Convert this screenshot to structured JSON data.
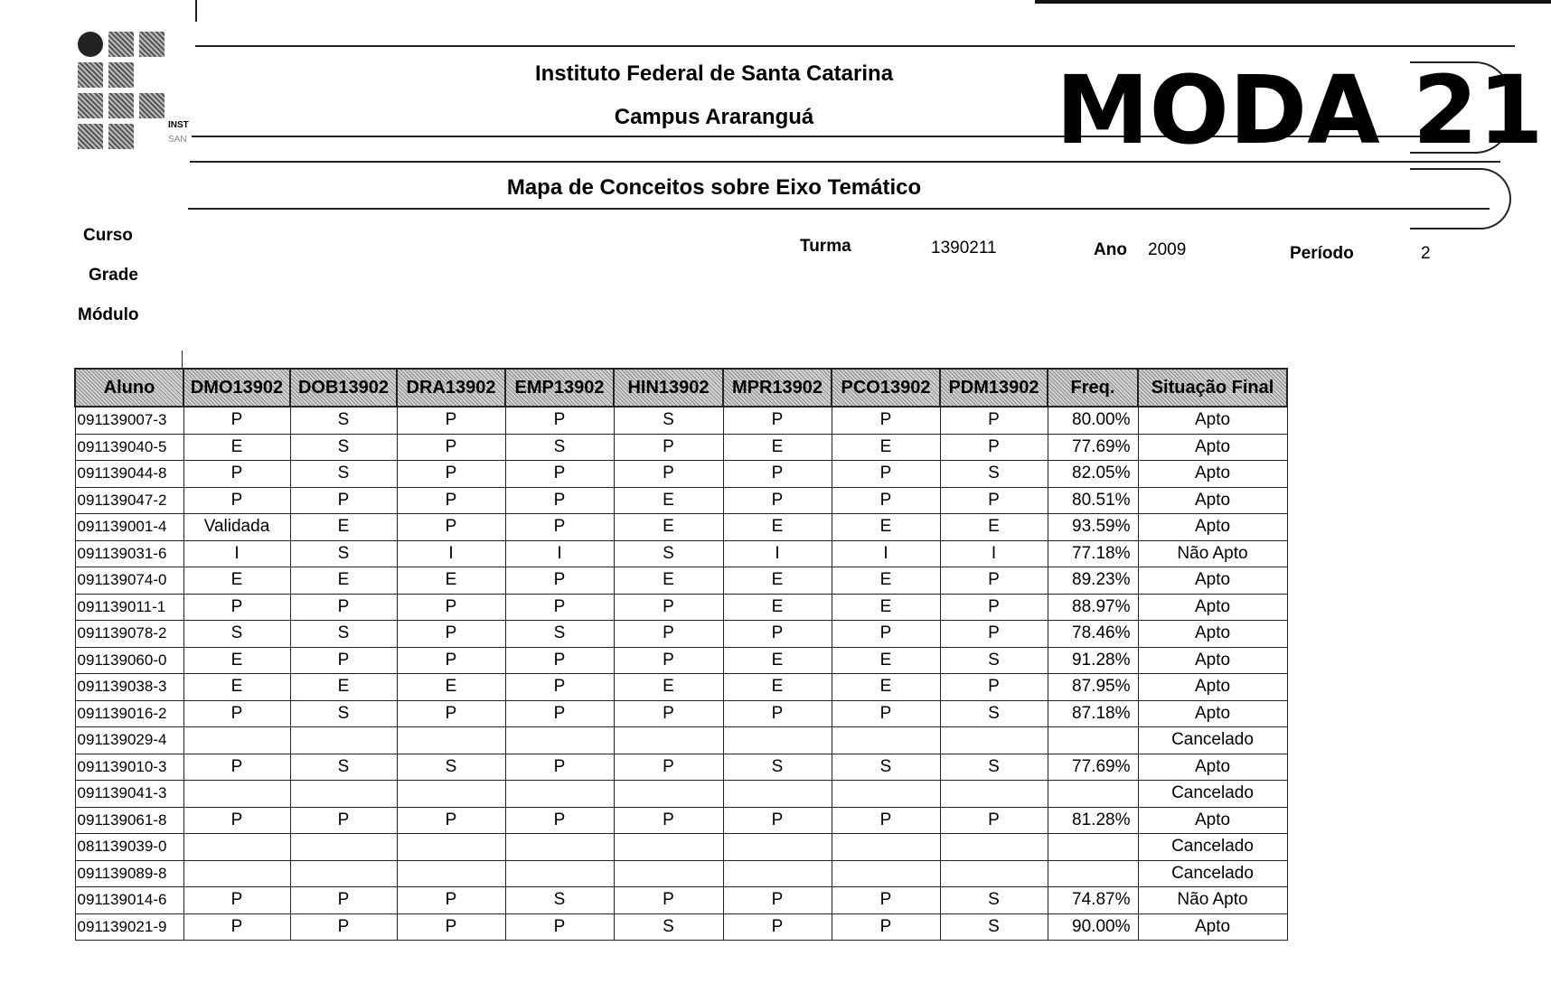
{
  "header": {
    "institution": "Instituto Federal de Santa Catarina",
    "campus": "Campus Araranguá",
    "report_title": "Mapa de Conceitos sobre Eixo Temático",
    "handwritten_note": "MODA 21",
    "logo_text": [
      "INST",
      "SAN"
    ]
  },
  "fields": {
    "curso_label": "Curso",
    "grade_label": "Grade",
    "modulo_label": "Módulo",
    "turma_label": "Turma",
    "turma_value": "1390211",
    "ano_label": "Ano",
    "ano_value": "2009",
    "periodo_label": "Período",
    "periodo_value": "2"
  },
  "table": {
    "columns": [
      "Aluno",
      "DMO13902",
      "DOB13902",
      "DRA13902",
      "EMP13902",
      "HIN13902",
      "MPR13902",
      "PCO13902",
      "PDM13902",
      "Freq.",
      "Situação Final"
    ],
    "rows": [
      [
        "091139007-3",
        "P",
        "S",
        "P",
        "P",
        "S",
        "P",
        "P",
        "P",
        "80.00%",
        "Apto"
      ],
      [
        "091139040-5",
        "E",
        "S",
        "P",
        "S",
        "P",
        "E",
        "E",
        "P",
        "77.69%",
        "Apto"
      ],
      [
        "091139044-8",
        "P",
        "S",
        "P",
        "P",
        "P",
        "P",
        "P",
        "S",
        "82.05%",
        "Apto"
      ],
      [
        "091139047-2",
        "P",
        "P",
        "P",
        "P",
        "E",
        "P",
        "P",
        "P",
        "80.51%",
        "Apto"
      ],
      [
        "091139001-4",
        "Validada",
        "E",
        "P",
        "P",
        "E",
        "E",
        "E",
        "E",
        "93.59%",
        "Apto"
      ],
      [
        "091139031-6",
        "I",
        "S",
        "I",
        "I",
        "S",
        "I",
        "I",
        "I",
        "77.18%",
        "Não Apto"
      ],
      [
        "091139074-0",
        "E",
        "E",
        "E",
        "P",
        "E",
        "E",
        "E",
        "P",
        "89.23%",
        "Apto"
      ],
      [
        "091139011-1",
        "P",
        "P",
        "P",
        "P",
        "P",
        "E",
        "E",
        "P",
        "88.97%",
        "Apto"
      ],
      [
        "091139078-2",
        "S",
        "S",
        "P",
        "S",
        "P",
        "P",
        "P",
        "P",
        "78.46%",
        "Apto"
      ],
      [
        "091139060-0",
        "E",
        "P",
        "P",
        "P",
        "P",
        "E",
        "E",
        "S",
        "91.28%",
        "Apto"
      ],
      [
        "091139038-3",
        "E",
        "E",
        "E",
        "P",
        "E",
        "E",
        "E",
        "P",
        "87.95%",
        "Apto"
      ],
      [
        "091139016-2",
        "P",
        "S",
        "P",
        "P",
        "P",
        "P",
        "P",
        "S",
        "87.18%",
        "Apto"
      ],
      [
        "091139029-4",
        "",
        "",
        "",
        "",
        "",
        "",
        "",
        "",
        "",
        "Cancelado"
      ],
      [
        "091139010-3",
        "P",
        "S",
        "S",
        "P",
        "P",
        "S",
        "S",
        "S",
        "77.69%",
        "Apto"
      ],
      [
        "091139041-3",
        "",
        "",
        "",
        "",
        "",
        "",
        "",
        "",
        "",
        "Cancelado"
      ],
      [
        "091139061-8",
        "P",
        "P",
        "P",
        "P",
        "P",
        "P",
        "P",
        "P",
        "81.28%",
        "Apto"
      ],
      [
        "081139039-0",
        "",
        "",
        "",
        "",
        "",
        "",
        "",
        "",
        "",
        "Cancelado"
      ],
      [
        "091139089-8",
        "",
        "",
        "",
        "",
        "",
        "",
        "",
        "",
        "",
        "Cancelado"
      ],
      [
        "091139014-6",
        "P",
        "P",
        "P",
        "S",
        "P",
        "P",
        "P",
        "S",
        "74.87%",
        "Não Apto"
      ],
      [
        "091139021-9",
        "P",
        "P",
        "P",
        "P",
        "S",
        "P",
        "P",
        "S",
        "90.00%",
        "Apto"
      ]
    ]
  }
}
